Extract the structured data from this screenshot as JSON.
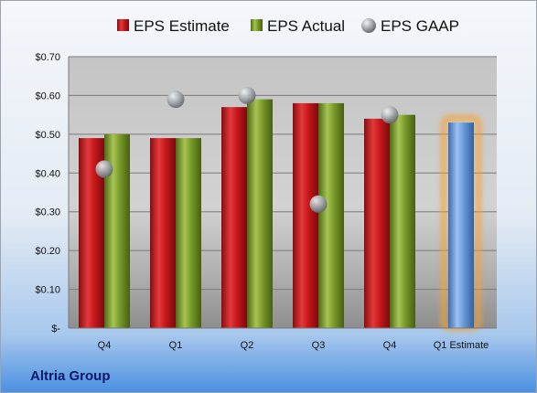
{
  "company": "Altria Group",
  "legend": [
    {
      "label": "EPS Estimate",
      "color": "#c8181c"
    },
    {
      "label": "EPS Actual",
      "color": "#7a9a2a"
    },
    {
      "label": "EPS GAAP",
      "color": "#9aa0a8"
    }
  ],
  "chart_data": {
    "type": "bar",
    "categories": [
      "Q4",
      "Q1",
      "Q2",
      "Q3",
      "Q4",
      "Q1 Estimate"
    ],
    "series": [
      {
        "name": "EPS Estimate",
        "values": [
          0.49,
          0.49,
          0.57,
          0.58,
          0.54,
          null
        ],
        "color": "#c8181c"
      },
      {
        "name": "EPS Actual",
        "values": [
          0.5,
          0.49,
          0.59,
          0.58,
          0.55,
          null
        ],
        "color": "#7a9a2a"
      },
      {
        "name": "EPS GAAP",
        "mark": "bubble",
        "values": [
          0.41,
          0.59,
          0.6,
          0.32,
          0.55,
          null
        ],
        "color": "#9aa0a8"
      }
    ],
    "forecast": {
      "category": "Q1 Estimate",
      "value": 0.53,
      "color": "#6a9ad8",
      "glow": "#f5a030"
    },
    "yticks": [
      "$-",
      "$0.10",
      "$0.20",
      "$0.30",
      "$0.40",
      "$0.50",
      "$0.60",
      "$0.70"
    ],
    "ylim": [
      0,
      0.7
    ],
    "grid": true,
    "legend_position": "top",
    "title": "",
    "xlabel": "",
    "ylabel": ""
  }
}
